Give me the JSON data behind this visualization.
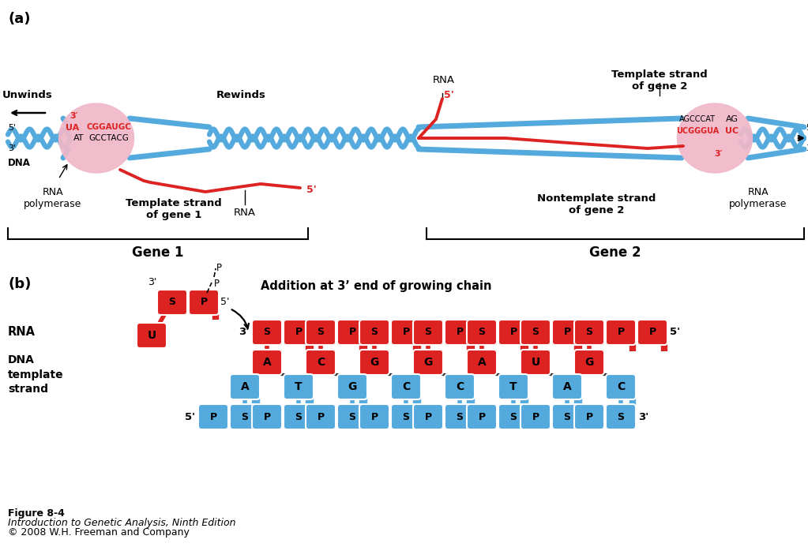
{
  "bg_color": "#ffffff",
  "red_color": "#dd2222",
  "red_dark": "#bb1111",
  "blue_color": "#55aadd",
  "blue_dark": "#3388bb",
  "pink_color": "#f0b8c8",
  "panel_a_label": "(a)",
  "panel_b_label": "(b)",
  "unwinds_text": "Unwinds",
  "rewinds_text": "Rewinds",
  "rna_text": "RNA",
  "dna_text": "DNA",
  "rna_pol_text": "RNA\npolymerase",
  "template_gene1": "Template strand\nof gene 1",
  "template_gene2": "Template strand\nof gene 2",
  "nontemplate_gene2": "Nontemplate strand\nof gene 2",
  "gene1_text": "Gene 1",
  "gene2_text": "Gene 2",
  "addition_text": "Addition at 3’ end of growing chain",
  "rna_label": "RNA",
  "dna_label": "DNA\ntemplate\nstrand",
  "fig_num": "Figure 8-4",
  "fig_book": "Introduction to Genetic Analysis, Ninth Edition",
  "fig_copy": "© 2008 W.H. Freeman and Company",
  "pol1_text1_red": "3′",
  "pol1_text2_red": "UA",
  "pol1_text3_black": "AT",
  "pol1_text4_red": "CGGAUGC",
  "pol1_text5_black": "GCCTACG",
  "pol2_text1_black": "AGCCCAT",
  "pol2_text2_red": "UCGGGUA",
  "pol2_text3_black": "AG",
  "pol2_text4_red": "UC",
  "pol2_text5_red": "3′",
  "rna_bases": [
    "A",
    "C",
    "G",
    "G",
    "A",
    "U",
    "G"
  ],
  "dna_bases_paired": [
    "T",
    "G",
    "C",
    "C",
    "T",
    "A",
    "C"
  ],
  "dna_base_free": "A"
}
